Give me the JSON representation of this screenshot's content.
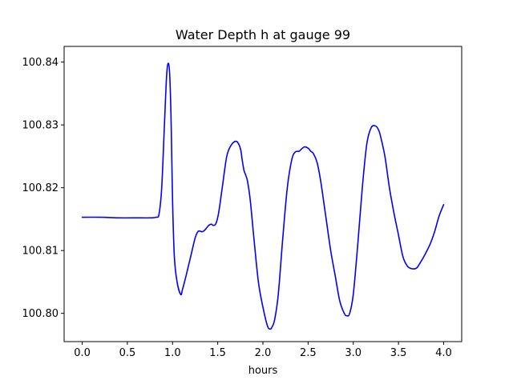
{
  "chart_data": {
    "type": "line",
    "title": "Water Depth h at gauge 99",
    "xlabel": "hours",
    "ylabel": "",
    "xlim": [
      -0.2,
      4.2
    ],
    "ylim": [
      100.7955,
      100.8425
    ],
    "x_ticks": [
      0.0,
      0.5,
      1.0,
      1.5,
      2.0,
      2.5,
      3.0,
      3.5,
      4.0
    ],
    "x_tick_labels": [
      "0.0",
      "0.5",
      "1.0",
      "1.5",
      "2.0",
      "2.5",
      "3.0",
      "3.5",
      "4.0"
    ],
    "y_ticks": [
      100.8,
      100.81,
      100.82,
      100.83,
      100.84
    ],
    "y_tick_labels": [
      "100.80",
      "100.81",
      "100.82",
      "100.83",
      "100.84"
    ],
    "grid": false,
    "legend": "none",
    "series": [
      {
        "color": "#0000ff",
        "x": [
          0.0,
          0.2,
          0.4,
          0.6,
          0.75,
          0.82,
          0.85,
          0.88,
          0.91,
          0.935,
          0.955,
          0.97,
          0.985,
          1.0,
          1.02,
          1.05,
          1.09,
          1.11,
          1.15,
          1.2,
          1.25,
          1.28,
          1.3,
          1.33,
          1.36,
          1.4,
          1.43,
          1.45,
          1.48,
          1.51,
          1.55,
          1.6,
          1.65,
          1.7,
          1.73,
          1.755,
          1.77,
          1.79,
          1.81,
          1.83,
          1.86,
          1.9,
          1.95,
          2.0,
          2.05,
          2.08,
          2.1,
          2.13,
          2.17,
          2.22,
          2.27,
          2.32,
          2.36,
          2.4,
          2.43,
          2.46,
          2.5,
          2.53,
          2.56,
          2.6,
          2.64,
          2.7,
          2.75,
          2.8,
          2.85,
          2.9,
          2.93,
          2.96,
          3.0,
          3.05,
          3.1,
          3.15,
          3.2,
          3.25,
          3.28,
          3.3,
          3.35,
          3.4,
          3.45,
          3.5,
          3.55,
          3.6,
          3.65,
          3.7,
          3.73,
          3.78,
          3.85,
          3.9,
          3.95,
          4.0
        ],
        "y": [
          100.8153,
          100.8153,
          100.8152,
          100.8152,
          100.8152,
          100.8153,
          100.8158,
          100.82,
          100.83,
          100.838,
          100.8398,
          100.8375,
          100.83,
          100.818,
          100.809,
          100.805,
          100.803,
          100.8038,
          100.806,
          100.809,
          100.812,
          100.813,
          100.8131,
          100.813,
          100.8133,
          100.814,
          100.8142,
          100.814,
          100.8143,
          100.816,
          100.82,
          100.825,
          100.8268,
          100.8274,
          100.827,
          100.826,
          100.8245,
          100.8228,
          100.822,
          100.821,
          100.818,
          100.812,
          100.805,
          100.801,
          100.798,
          100.7975,
          100.7978,
          100.799,
          100.803,
          100.812,
          100.82,
          100.8245,
          100.8257,
          100.8258,
          100.8262,
          100.8265,
          100.8263,
          100.8258,
          100.8254,
          100.824,
          100.821,
          100.815,
          100.81,
          100.806,
          100.802,
          100.8,
          100.7996,
          100.8,
          100.803,
          100.811,
          100.82,
          100.827,
          100.8296,
          100.8298,
          100.8292,
          100.8283,
          100.825,
          100.82,
          100.816,
          100.8125,
          100.809,
          100.8075,
          100.8071,
          100.8072,
          100.8078,
          100.809,
          100.811,
          100.813,
          100.8155,
          100.8173
        ]
      }
    ]
  }
}
